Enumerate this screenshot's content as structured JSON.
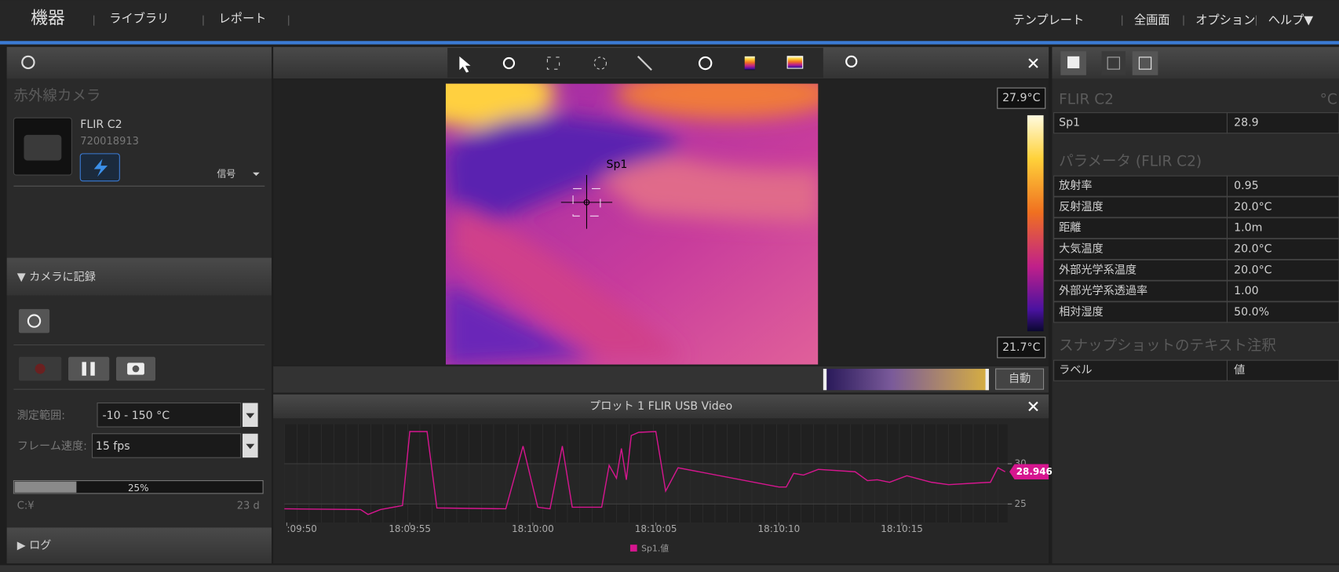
{
  "menu": {
    "left": [
      "機器",
      "ライブラリ",
      "レポート"
    ],
    "right": [
      "テンプレート",
      "全画面",
      "オプション",
      "ヘルプ▼"
    ]
  },
  "camera_panel": {
    "title": "赤外線カメラ",
    "model": "FLIR C2",
    "serial": "720018913",
    "signal": "信号"
  },
  "record": {
    "title": "▼ カメラに記録",
    "range_label": "測定範囲:",
    "range_value": "-10 - 150 °C",
    "fps_label": "フレーム速度:",
    "fps_value": "15 fps",
    "storage_value": 25,
    "storage_label": "25%",
    "drive": "C:¥",
    "days": "23 d"
  },
  "log": "▶ ログ",
  "image": {
    "spot_label": "Sp1",
    "scale_max": "27.9°C",
    "scale_min": "21.7°C",
    "auto": "自動"
  },
  "chart_data": {
    "type": "line",
    "title": "プロット 1 FLIR USB Video",
    "x": [
      -0.1,
      3.0,
      3.3,
      3.8,
      4.7,
      5.0,
      5.7,
      6.1,
      8.9,
      9.6,
      10.2,
      10.7,
      11.2,
      11.6,
      12.8,
      13.1,
      13.4,
      13.6,
      13.8,
      14.0,
      14.3,
      15.0,
      15.4,
      15.9,
      20.0,
      20.3,
      20.6,
      21.0,
      21.6,
      23.1,
      23.6,
      24.0,
      24.5,
      25.2,
      26.2,
      26.9,
      28.0,
      28.6,
      28.9,
      29.2
    ],
    "series": [
      {
        "name": "Sp1.値",
        "color": "#d6168f",
        "values": [
          24.4,
          24.3,
          23.7,
          24.3,
          24.8,
          34.0,
          34.0,
          24.5,
          24.4,
          32.2,
          24.6,
          24.4,
          32.2,
          24.6,
          24.6,
          29.8,
          28.2,
          31.9,
          28.0,
          33.5,
          33.9,
          34.0,
          26.6,
          29.5,
          27.1,
          27.1,
          28.8,
          28.6,
          29.3,
          29.0,
          27.9,
          28.0,
          27.7,
          28.5,
          27.7,
          27.4,
          27.6,
          27.7,
          29.5,
          29.0
        ]
      }
    ],
    "xlim": [
      -0.1,
      29.3
    ],
    "xticks": [
      {
        "value": 0,
        "label": ":09:50"
      },
      {
        "value": 5,
        "label": "18:09:55"
      },
      {
        "value": 10,
        "label": "18:10:00"
      },
      {
        "value": 15,
        "label": "18:10:05"
      },
      {
        "value": 20,
        "label": "18:10:10"
      },
      {
        "value": 25,
        "label": "18:10:15"
      }
    ],
    "ylim": [
      22.7,
      34.9
    ],
    "yticks": [
      25,
      30
    ],
    "current_label": "28.946",
    "grid": true
  },
  "info_panel": {
    "camera": "FLIR C2",
    "unit": "°C",
    "spots": [
      [
        "Sp1",
        "28.9"
      ]
    ],
    "params_title": "パラメータ (FLIR C2)",
    "params": [
      [
        "放射率",
        "0.95"
      ],
      [
        "反射温度",
        "20.0°C"
      ],
      [
        "距離",
        "1.0m"
      ],
      [
        "大気温度",
        "20.0°C"
      ],
      [
        "外部光学系温度",
        "20.0°C"
      ],
      [
        "外部光学系透過率",
        "1.00"
      ],
      [
        "相対湿度",
        "50.0%"
      ]
    ],
    "snapshot_title": "スナップショットのテキスト注釈",
    "snapshot_header": [
      "ラベル",
      "値"
    ]
  }
}
